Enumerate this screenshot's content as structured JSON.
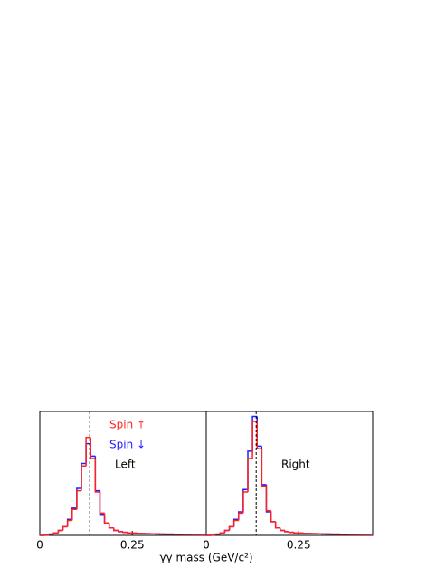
{
  "chart_data": {
    "type": "histogram",
    "xlabel": "γγ mass (GeV/c²)",
    "bins": [
      0,
      0.0125,
      0.025,
      0.0375,
      0.05,
      0.0625,
      0.075,
      0.0875,
      0.1,
      0.1125,
      0.125,
      0.1375,
      0.15,
      0.1625,
      0.175,
      0.1875,
      0.2,
      0.2125,
      0.225,
      0.2375,
      0.25,
      0.2625,
      0.275,
      0.2875,
      0.3,
      0.3125,
      0.325,
      0.3375,
      0.35,
      0.3625,
      0.375,
      0.3875,
      0.4,
      0.4125,
      0.425,
      0.4375,
      0.45
    ],
    "xlim": [
      0,
      0.45
    ],
    "xticks": [
      0,
      0.25
    ],
    "ylim": [
      0,
      100
    ],
    "reference_line": 0.135,
    "panels": [
      {
        "label": "Left",
        "series": [
          {
            "name": "Spin ↑",
            "color": "#ff2020",
            "values": [
              0,
              0.5,
              1,
              2,
              4,
              7,
              12,
              21,
              36,
              56,
              79,
              62,
              35,
              18,
              10,
              6,
              4,
              3,
              2.5,
              2,
              1.8,
              1.6,
              1.5,
              1.4,
              1.3,
              1.2,
              1.1,
              1,
              1,
              0.9,
              0.9,
              0.8,
              0.8,
              0.7,
              0.7,
              0.6
            ]
          },
          {
            "name": "Spin ↓",
            "color": "#2020ff",
            "values": [
              0,
              0.5,
              1,
              2,
              4,
              7,
              13,
              22,
              38,
              58,
              74,
              64,
              36,
              17,
              10,
              6,
              4,
              3,
              2.5,
              2,
              1.8,
              1.6,
              1.5,
              1.4,
              1.3,
              1.2,
              1.1,
              1,
              1,
              0.9,
              0.9,
              0.8,
              0.8,
              0.7,
              0.7,
              0.6
            ]
          }
        ]
      },
      {
        "label": "Right",
        "series": [
          {
            "color": "#ff2020",
            "values": [
              0,
              0.5,
              1,
              2,
              4,
              7,
              12,
              18,
              35,
              62,
              92,
              70,
              40,
              20,
              11,
              6,
              4,
              3,
              2.5,
              2,
              1.8,
              1.6,
              1.5,
              1.4,
              1.3,
              1.2,
              1.1,
              1,
              1,
              0.9,
              0.9,
              0.8,
              0.8,
              0.7,
              0.7,
              0.6
            ]
          },
          {
            "color": "#2020ff",
            "values": [
              0,
              0.5,
              1,
              2,
              4,
              7,
              13,
              19,
              37,
              68,
              96,
              72,
              41,
              19,
              11,
              6,
              4,
              3,
              2.5,
              2,
              1.8,
              1.6,
              1.5,
              1.4,
              1.3,
              1.2,
              1.1,
              1,
              1,
              0.9,
              0.9,
              0.8,
              0.8,
              0.7,
              0.7,
              0.6
            ]
          }
        ]
      }
    ]
  }
}
